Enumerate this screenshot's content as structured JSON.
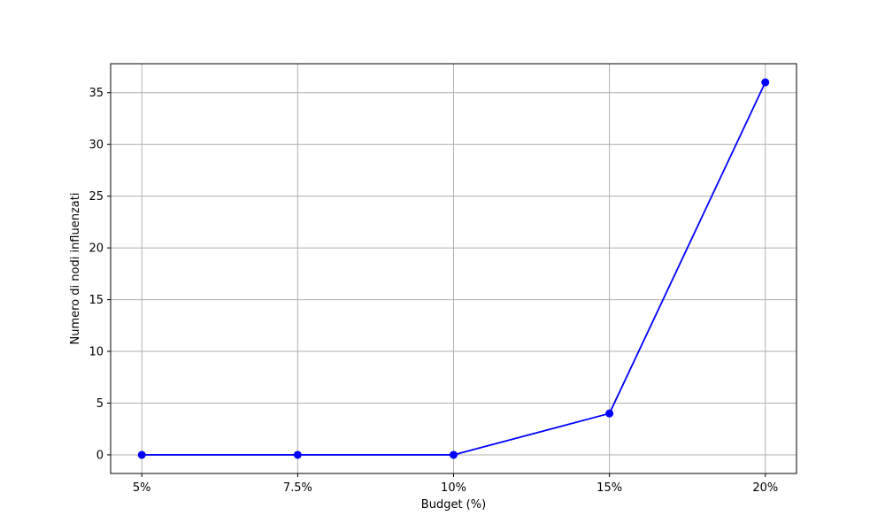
{
  "chart_data": {
    "type": "line",
    "title": "",
    "xlabel": "Budget (%)",
    "ylabel": "Numero di nodi influenzati",
    "categories": [
      "5%",
      "7.5%",
      "10%",
      "15%",
      "20%"
    ],
    "series": [
      {
        "values": [
          0,
          0,
          0,
          4,
          36
        ],
        "color": "#0000ff",
        "marker": "circle"
      }
    ],
    "ylim": [
      -1.8,
      37.8
    ],
    "yticks": [
      0,
      5,
      10,
      15,
      20,
      25,
      30,
      35
    ],
    "ytick_labels": [
      "0",
      "5",
      "10",
      "15",
      "20",
      "25",
      "30",
      "35"
    ],
    "grid": true,
    "legend": "none"
  }
}
